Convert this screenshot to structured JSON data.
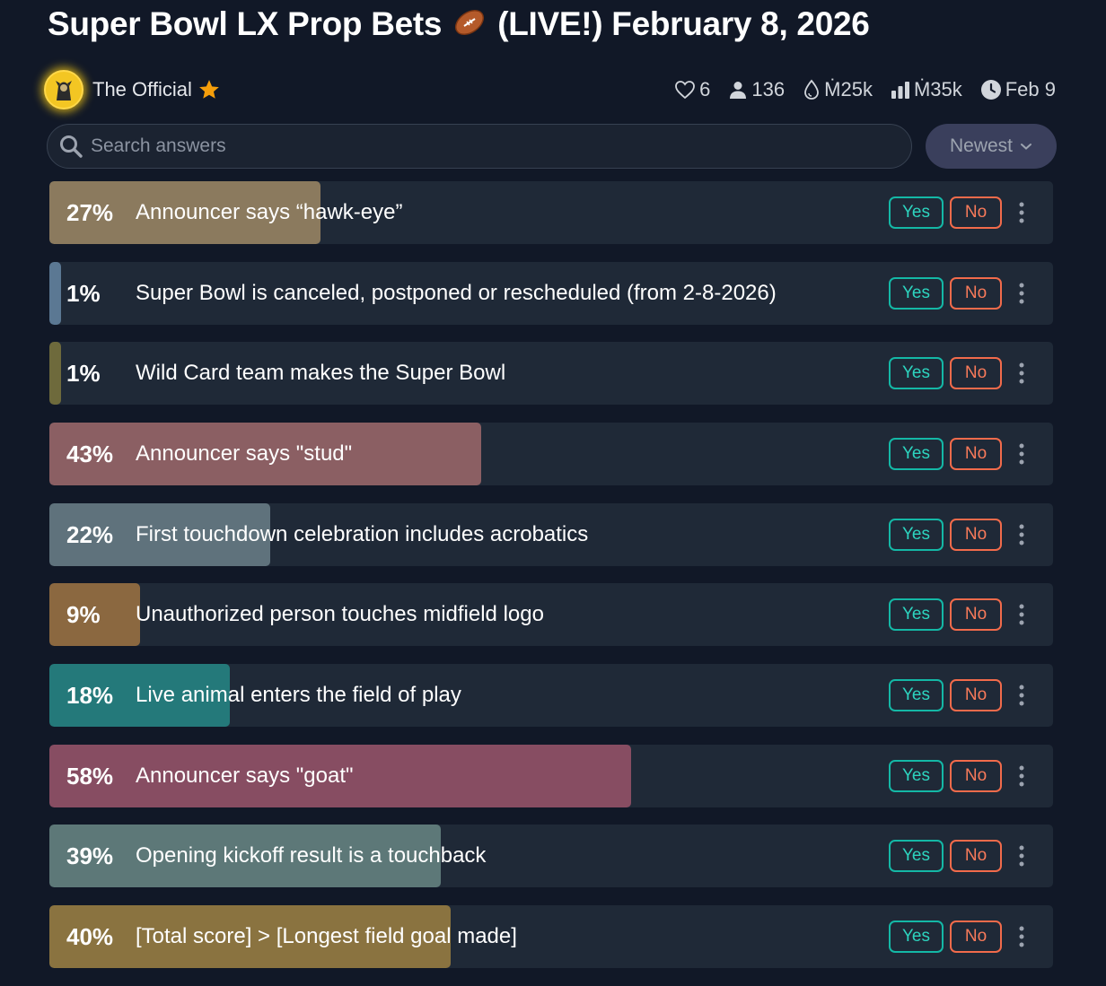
{
  "title": "Super Bowl LX Prop Bets",
  "title_emoji": "🏈",
  "title_suffix": "(LIVE!) February 8, 2026",
  "author": {
    "name": "The Official",
    "badge_icon": "star-icon"
  },
  "stats": {
    "likes": "6",
    "traders": "136",
    "liquidity": "Ṁ25k",
    "volume": "Ṁ35k",
    "close_date": "Feb 9"
  },
  "search": {
    "placeholder": "Search answers",
    "value": ""
  },
  "sort": {
    "selected": "Newest"
  },
  "buttons": {
    "yes": "Yes",
    "no": "No"
  },
  "answers": [
    {
      "pct": "27%",
      "prob": 0.27,
      "color": "#8b7a5e",
      "text": "Announcer says “hawk-eye”"
    },
    {
      "pct": "1%",
      "prob": 0.01,
      "color": "#5b7893",
      "text": "Super Bowl is canceled, postponed or rescheduled (from 2-8-2026)"
    },
    {
      "pct": "1%",
      "prob": 0.01,
      "color": "#6e6a3c",
      "text": "Wild Card team makes the Super Bowl"
    },
    {
      "pct": "43%",
      "prob": 0.43,
      "color": "#8b5f63",
      "text": "Announcer says \"stud\""
    },
    {
      "pct": "22%",
      "prob": 0.22,
      "color": "#5f727c",
      "text": "First touchdown celebration includes acrobatics"
    },
    {
      "pct": "9%",
      "prob": 0.09,
      "color": "#8b6840",
      "text": "Unauthorized person touches midfield logo"
    },
    {
      "pct": "18%",
      "prob": 0.18,
      "color": "#24797a",
      "text": "Live animal enters the field of play"
    },
    {
      "pct": "58%",
      "prob": 0.58,
      "color": "#874d62",
      "text": "Announcer says \"goat\""
    },
    {
      "pct": "39%",
      "prob": 0.39,
      "color": "#5d7878",
      "text": "Opening kickoff result is a touchback"
    },
    {
      "pct": "40%",
      "prob": 0.4,
      "color": "#8a7340",
      "text": "[Total score] > [Longest field goal made]"
    }
  ]
}
